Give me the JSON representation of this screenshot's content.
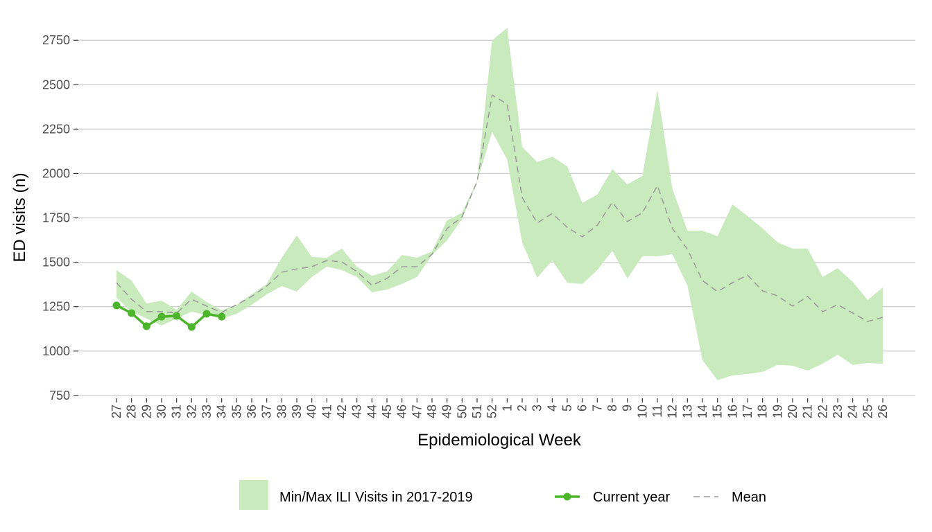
{
  "chart_data": {
    "type": "line",
    "x_label": "Epidemiological Week",
    "y_label": "ED visits (n)",
    "categories": [
      "27",
      "28",
      "29",
      "30",
      "31",
      "32",
      "33",
      "34",
      "35",
      "36",
      "37",
      "38",
      "39",
      "40",
      "41",
      "42",
      "43",
      "44",
      "45",
      "46",
      "47",
      "48",
      "49",
      "50",
      "51",
      "52",
      "1",
      "2",
      "3",
      "4",
      "5",
      "6",
      "7",
      "8",
      "9",
      "10",
      "11",
      "12",
      "13",
      "14",
      "15",
      "16",
      "17",
      "18",
      "19",
      "20",
      "21",
      "22",
      "23",
      "24",
      "25",
      "26"
    ],
    "ylim": [
      695,
      2860
    ],
    "yticks": [
      750,
      1000,
      1250,
      1500,
      1750,
      2000,
      2250,
      2500,
      2750
    ],
    "grid": true,
    "legend": "bottom",
    "band": {
      "name": "Min/Max ILI Visits in 2017-2019",
      "color": "#c8eabd",
      "upper": [
        1456,
        1397,
        1268,
        1284,
        1233,
        1335,
        1276,
        1230,
        1261,
        1319,
        1378,
        1526,
        1651,
        1530,
        1526,
        1577,
        1475,
        1424,
        1448,
        1541,
        1526,
        1561,
        1736,
        1779,
        1962,
        2750,
        2820,
        2150,
        2064,
        2095,
        2040,
        1834,
        1881,
        2025,
        1939,
        1986,
        2469,
        1912,
        1678,
        1678,
        1647,
        1826,
        1760,
        1690,
        1612,
        1577,
        1577,
        1417,
        1467,
        1389,
        1288,
        1358
      ],
      "lower": [
        1300,
        1222,
        1183,
        1144,
        1183,
        1222,
        1202,
        1183,
        1210,
        1261,
        1319,
        1366,
        1335,
        1417,
        1475,
        1456,
        1417,
        1331,
        1346,
        1378,
        1417,
        1541,
        1623,
        1744,
        1955,
        2235,
        2079,
        1612,
        1413,
        1510,
        1385,
        1378,
        1456,
        1565,
        1409,
        1534,
        1534,
        1545,
        1370,
        949,
        836,
        863,
        871,
        883,
        922,
        918,
        890,
        929,
        980,
        922,
        933,
        929
      ]
    },
    "series": [
      {
        "name": "Current year",
        "color": "#4db52b",
        "dashed": false,
        "markers": true,
        "values": [
          1257,
          1214,
          1140,
          1194,
          1198,
          1136,
          1210,
          1194,
          null,
          null,
          null,
          null,
          null,
          null,
          null,
          null,
          null,
          null,
          null,
          null,
          null,
          null,
          null,
          null,
          null,
          null,
          null,
          null,
          null,
          null,
          null,
          null,
          null,
          null,
          null,
          null,
          null,
          null,
          null,
          null,
          null,
          null,
          null,
          null,
          null,
          null,
          null,
          null,
          null,
          null,
          null,
          null
        ]
      },
      {
        "name": "Mean",
        "color": "#999999",
        "dashed": true,
        "markers": false,
        "values": [
          1385,
          1292,
          1222,
          1222,
          1214,
          1292,
          1253,
          1218,
          1261,
          1308,
          1366,
          1444,
          1463,
          1475,
          1510,
          1502,
          1448,
          1370,
          1409,
          1475,
          1475,
          1545,
          1690,
          1756,
          1955,
          2442,
          2391,
          1865,
          1721,
          1775,
          1697,
          1643,
          1709,
          1838,
          1729,
          1779,
          1931,
          1690,
          1573,
          1397,
          1335,
          1385,
          1428,
          1339,
          1311,
          1253,
          1308,
          1222,
          1261,
          1214,
          1167,
          1190
        ]
      }
    ]
  }
}
